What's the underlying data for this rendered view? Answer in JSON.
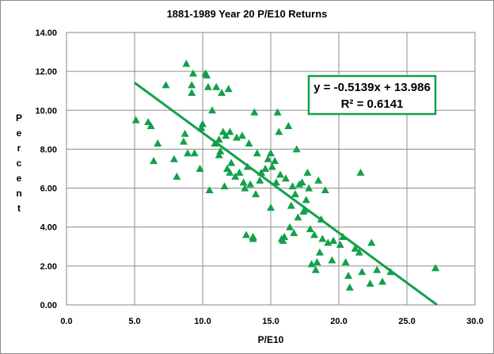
{
  "chart_data": {
    "type": "scatter",
    "title": "1881-1989 Year 20 P/E10 Returns",
    "xlabel": "P/E10",
    "ylabel": "Percent",
    "xlim": [
      0,
      30
    ],
    "ylim": [
      0,
      14
    ],
    "x_ticks": [
      "0.0",
      "5.0",
      "10.0",
      "15.0",
      "20.0",
      "25.0",
      "30.0"
    ],
    "y_ticks": [
      "0.00",
      "2.00",
      "4.00",
      "6.00",
      "8.00",
      "10.00",
      "12.00",
      "14.00"
    ],
    "grid": true,
    "legend": "none",
    "marker": "triangle",
    "color": "#12a04a",
    "series": [
      {
        "points": [
          [
            5.1,
            9.5
          ],
          [
            6.0,
            9.4
          ],
          [
            6.2,
            9.2
          ],
          [
            6.4,
            7.4
          ],
          [
            6.7,
            8.3
          ],
          [
            7.3,
            11.3
          ],
          [
            7.9,
            7.5
          ],
          [
            8.1,
            6.6
          ],
          [
            8.6,
            8.4
          ],
          [
            8.7,
            8.8
          ],
          [
            8.8,
            12.4
          ],
          [
            8.9,
            7.8
          ],
          [
            9.2,
            11.3
          ],
          [
            9.3,
            11.9
          ],
          [
            9.2,
            10.9
          ],
          [
            9.4,
            7.8
          ],
          [
            9.8,
            7.0
          ],
          [
            9.9,
            9.1
          ],
          [
            10.0,
            9.3
          ],
          [
            10.2,
            11.9
          ],
          [
            10.3,
            11.8
          ],
          [
            10.4,
            11.2
          ],
          [
            10.5,
            5.9
          ],
          [
            10.7,
            10.0
          ],
          [
            10.9,
            8.3
          ],
          [
            11.0,
            11.2
          ],
          [
            11.2,
            7.7
          ],
          [
            11.2,
            8.5
          ],
          [
            11.3,
            7.9
          ],
          [
            11.4,
            10.9
          ],
          [
            11.5,
            8.9
          ],
          [
            11.6,
            6.1
          ],
          [
            11.7,
            8.7
          ],
          [
            11.8,
            7.0
          ],
          [
            11.9,
            11.1
          ],
          [
            12.0,
            8.9
          ],
          [
            12.0,
            6.8
          ],
          [
            12.1,
            7.3
          ],
          [
            12.4,
            6.6
          ],
          [
            12.5,
            8.6
          ],
          [
            12.7,
            6.8
          ],
          [
            12.9,
            8.7
          ],
          [
            13.0,
            6.3
          ],
          [
            13.1,
            6.0
          ],
          [
            13.2,
            3.6
          ],
          [
            13.3,
            7.1
          ],
          [
            13.4,
            8.3
          ],
          [
            13.5,
            6.2
          ],
          [
            13.7,
            3.4
          ],
          [
            13.7,
            3.5
          ],
          [
            13.8,
            9.9
          ],
          [
            13.9,
            5.7
          ],
          [
            14.0,
            7.8
          ],
          [
            14.2,
            6.4
          ],
          [
            14.3,
            6.8
          ],
          [
            14.6,
            7.0
          ],
          [
            14.8,
            7.5
          ],
          [
            15.0,
            5.0
          ],
          [
            15.0,
            7.8
          ],
          [
            15.1,
            7.1
          ],
          [
            15.3,
            7.4
          ],
          [
            15.4,
            6.3
          ],
          [
            15.5,
            9.9
          ],
          [
            15.6,
            8.9
          ],
          [
            15.7,
            6.7
          ],
          [
            15.8,
            3.4
          ],
          [
            15.9,
            3.3
          ],
          [
            16.0,
            3.5
          ],
          [
            16.1,
            6.5
          ],
          [
            16.3,
            9.2
          ],
          [
            16.4,
            4.0
          ],
          [
            16.5,
            5.1
          ],
          [
            16.6,
            6.1
          ],
          [
            16.7,
            3.7
          ],
          [
            16.8,
            5.7
          ],
          [
            16.9,
            8.0
          ],
          [
            17.0,
            4.5
          ],
          [
            17.1,
            6.2
          ],
          [
            17.3,
            6.3
          ],
          [
            17.4,
            4.8
          ],
          [
            17.5,
            4.9
          ],
          [
            17.6,
            5.4
          ],
          [
            17.7,
            6.8
          ],
          [
            17.8,
            6.0
          ],
          [
            17.9,
            3.9
          ],
          [
            18.0,
            2.1
          ],
          [
            18.2,
            3.6
          ],
          [
            18.3,
            1.8
          ],
          [
            18.4,
            2.2
          ],
          [
            18.5,
            6.4
          ],
          [
            18.6,
            2.7
          ],
          [
            18.7,
            4.4
          ],
          [
            18.8,
            3.4
          ],
          [
            19.0,
            5.9
          ],
          [
            19.2,
            3.2
          ],
          [
            19.5,
            2.3
          ],
          [
            19.6,
            3.3
          ],
          [
            20.1,
            3.1
          ],
          [
            20.3,
            3.5
          ],
          [
            20.5,
            2.2
          ],
          [
            20.7,
            1.5
          ],
          [
            20.8,
            0.9
          ],
          [
            21.2,
            2.9
          ],
          [
            21.5,
            2.7
          ],
          [
            21.6,
            6.8
          ],
          [
            21.7,
            1.7
          ],
          [
            22.3,
            1.1
          ],
          [
            22.4,
            3.2
          ],
          [
            22.8,
            1.8
          ],
          [
            23.2,
            1.2
          ],
          [
            23.8,
            1.7
          ],
          [
            27.1,
            1.9
          ]
        ]
      }
    ],
    "trendline": {
      "slope": -0.5139,
      "intercept": 13.986,
      "x_start": 5.0,
      "x_end": 27.2,
      "equation": "y = -0.5139x + 13.986",
      "r2_label": "R² = 0.6141"
    }
  }
}
